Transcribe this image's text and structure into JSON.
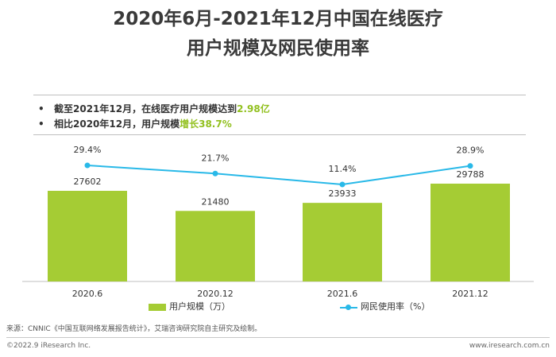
{
  "title": {
    "line1": "2020年6月-2021年12月中国在线医疗",
    "line2": "用户规模及网民使用率"
  },
  "bullets": [
    {
      "prefix": "截至2021年12月，在线医疗用户规模达到",
      "highlight": "2.98亿"
    },
    {
      "prefix": "相比2020年12月，用户规模",
      "highlight": "增长38.7%"
    }
  ],
  "bullet_symbol": "•",
  "chart_data": {
    "type": "bar",
    "categories": [
      "2020.6",
      "2020.12",
      "2021.6",
      "2021.12"
    ],
    "series": [
      {
        "name": "用户规模（万）",
        "type": "bar",
        "values": [
          27602,
          21480,
          23933,
          29788
        ],
        "color": "#a5cc34"
      },
      {
        "name": "网民使用率（%）",
        "type": "line",
        "values": [
          29.4,
          21.7,
          11.4,
          28.9
        ],
        "labels": [
          "29.4%",
          "21.7%",
          "11.4%",
          "28.9%"
        ],
        "color": "#29b9e8"
      }
    ],
    "bar_labels": [
      "27602",
      "21480",
      "23933",
      "29788"
    ],
    "legend": "bottom",
    "grid": false
  },
  "source": "来源：CNNIC《中国互联网络发展报告统计》，艾瑞咨询研究院自主研究及绘制。",
  "copyright": "©2022.9 iResearch Inc.",
  "website": "www.iresearch.com.cn",
  "colors": {
    "accent": "#92c01f",
    "bar": "#a5cc34",
    "line": "#29b9e8"
  }
}
